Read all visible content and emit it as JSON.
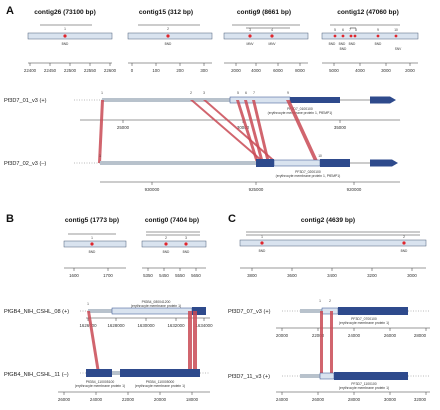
{
  "panels": [
    {
      "letter": "A",
      "contigs": [
        {
          "title": "contig26 (73100 bp)",
          "ticks": [
            "22400",
            "22450",
            "22500",
            "22550",
            "22600"
          ],
          "bp": [
            {
              "num": "1",
              "label": "BND"
            }
          ]
        },
        {
          "title": "contig15 (312 bp)",
          "ticks": [
            "0",
            "100",
            "200",
            "300"
          ],
          "bp": [
            {
              "num": "2",
              "label": "BND"
            }
          ]
        },
        {
          "title": "contig9 (8661 bp)",
          "ticks": [
            "2000",
            "4000",
            "6000",
            "8000"
          ],
          "bp": [
            {
              "num": "3",
              "label": "MNV"
            },
            {
              "num": "4",
              "label": "MNV"
            }
          ]
        },
        {
          "title": "contig12 (47060 bp)",
          "ticks": [
            "5000",
            "4000",
            "3000",
            "2000"
          ],
          "bp": [
            {
              "num": "5",
              "label": "BND"
            },
            {
              "num": "6",
              "label": "BND"
            },
            {
              "num": "7",
              "label": "BND"
            },
            {
              "num": "8",
              "label": "BND"
            },
            {
              "num": "9",
              "label": "BND"
            },
            {
              "num": "10",
              "label": "SNV"
            }
          ]
        }
      ],
      "tracks": [
        {
          "label": "Pf3D7_01_v3 (+)",
          "gene": "PF3D7_0100100",
          "gene_desc": "(erythrocyte membrane protein 1, PfEMP1)",
          "ticks": [
            "25000",
            "30000",
            "35000"
          ]
        },
        {
          "label": "Pf3D7_02_v3 (–)",
          "gene": "PF3D7_0200100",
          "gene_desc": "(erythrocyte membrane protein 1, PfEMP1)",
          "ticks": [
            "930000",
            "925000",
            "920000"
          ]
        }
      ]
    },
    {
      "letter": "B",
      "contigs": [
        {
          "title": "contig5 (1773 bp)",
          "ticks": [
            "1600",
            "1700"
          ],
          "bp": [
            {
              "num": "1",
              "label": "BND"
            }
          ]
        },
        {
          "title": "contig0 (7404 bp)",
          "ticks": [
            "5350",
            "5450",
            "5550",
            "5650"
          ],
          "bp": [
            {
              "num": "2",
              "label": "BND"
            },
            {
              "num": "3",
              "label": "BND"
            }
          ]
        }
      ],
      "tracks": [
        {
          "label": "PfGB4_NIH_CSHL_08 (+)",
          "gene": "PfGB4_080041200",
          "gene_desc": "(erythrocyte membrane protein 1)",
          "ticks": [
            "1626000",
            "1628000",
            "1630000",
            "1632000",
            "1634000"
          ]
        },
        {
          "label": "PfGB4_NIH_CSHL_11 (–)",
          "gene_left": "PfGB4_110005100",
          "gene_left_desc": "(erythrocyte membrane protein 1)",
          "gene": "PfGB4_110005000",
          "gene_desc": "(erythrocyte membrane protein 1)",
          "ticks": [
            "26000",
            "24000",
            "22000",
            "20000",
            "18000"
          ]
        }
      ]
    },
    {
      "letter": "C",
      "contigs": [
        {
          "title": "contig2 (4639 bp)",
          "ticks": [
            "3800",
            "3600",
            "3400",
            "3200",
            "3000"
          ],
          "bp": [
            {
              "num": "1",
              "label": "BND"
            },
            {
              "num": "2",
              "label": "BND"
            }
          ]
        }
      ],
      "tracks": [
        {
          "label": "Pf3D7_07_v3 (+)",
          "gene": "PF3D7_0700100",
          "gene_desc": "(erythrocyte membrane protein 1)",
          "ticks": [
            "20000",
            "22000",
            "24000",
            "26000",
            "28000"
          ]
        },
        {
          "label": "Pf3D7_11_v3 (+)",
          "gene": "PF3D7_1100100",
          "gene_desc": "(erythrocyte membrane protein 1)",
          "ticks": [
            "24000",
            "26000",
            "28000",
            "30000",
            "32000"
          ]
        }
      ]
    }
  ],
  "colors": {
    "read": "#d9e3ef",
    "gene": "#2e4a8c",
    "link": "#c94a55",
    "dot": "#e0262d",
    "chrom": "#b8c2cc"
  }
}
